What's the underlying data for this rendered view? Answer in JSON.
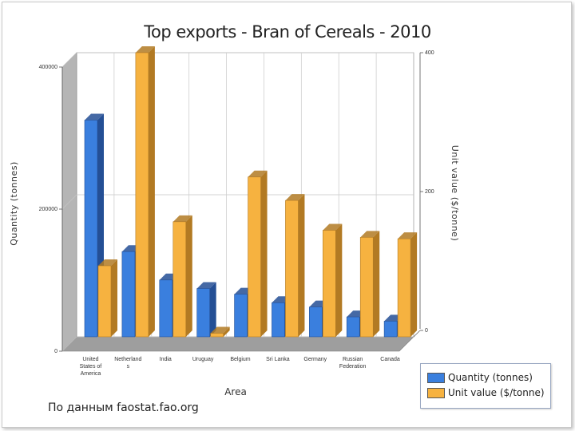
{
  "colors": {
    "quantity": "#3a7fde",
    "quantity_dark": "#244f95",
    "unit_value": "#f6b240",
    "unit_value_dark": "#b27a23",
    "floor": "#9e9e9e"
  },
  "footer": {
    "source": "По данным faostat.fao.org"
  },
  "chart_data": {
    "type": "bar",
    "title": "Top exports - Bran of Cereals - 2010",
    "categories": [
      "United States of America",
      "Netherlands",
      "India",
      "Uruguay",
      "Belgium",
      "Sri Lanka",
      "Germany",
      "Russian Federation",
      "Canada"
    ],
    "category_labels": [
      [
        "United",
        "States of",
        "America"
      ],
      [
        "Netherland",
        "s"
      ],
      [
        "India"
      ],
      [
        "Uruguay"
      ],
      [
        "Belgium"
      ],
      [
        "Sri Lanka"
      ],
      [
        "Germany"
      ],
      [
        "Russian",
        "Federation"
      ],
      [
        "Canada"
      ]
    ],
    "series": [
      {
        "name": "Quantity (tonnes)",
        "axis": "left",
        "values": [
          305000,
          120000,
          80000,
          68000,
          60000,
          48000,
          42000,
          28000,
          22000
        ]
      },
      {
        "name": "Unit value ($/tonne)",
        "axis": "right",
        "values": [
          100,
          400,
          162,
          5,
          225,
          192,
          150,
          140,
          138
        ]
      }
    ],
    "xlabel": "Area",
    "ylabel": "Quantity (tonnes)",
    "y2label": "Unit value ($/tonne)",
    "ylim": [
      0,
      400000
    ],
    "y2lim": [
      0,
      400
    ],
    "y_ticks": [
      "0",
      "200000",
      "400000"
    ],
    "y2_ticks": [
      "0",
      "200",
      "400"
    ],
    "grid": true,
    "legend": "bottom-right"
  }
}
